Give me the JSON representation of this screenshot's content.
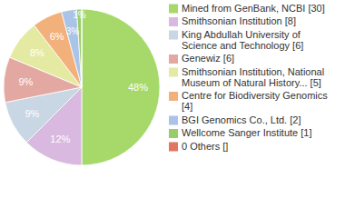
{
  "chart_data": {
    "type": "pie",
    "categories": [
      "Mined from GenBank, NCBI [30]",
      "Smithsonian Institution [8]",
      "King Abdullah University of Science and Technology [6]",
      "Genewiz [6]",
      "Smithsonian Institution, National Museum of Natural History... [5]",
      "Centre for Biodiversity Genomics [4]",
      "BGI Genomics Co., Ltd. [2]",
      "Wellcome Sanger Institute [1]",
      "0 Others []"
    ],
    "values": [
      48,
      12,
      9,
      9,
      8,
      6,
      3,
      1,
      0
    ],
    "value_labels": [
      "48%",
      "12%",
      "9%",
      "9%",
      "8%",
      "6%",
      "3%",
      "1%",
      null
    ],
    "colors": [
      "#a6d96a",
      "#d9b9e0",
      "#c9d6e4",
      "#e3a8a1",
      "#e5eaa3",
      "#f2b07b",
      "#a9c4e7",
      "#98cd68",
      "#e0765f"
    ],
    "data_labels": true,
    "legend": "right"
  }
}
